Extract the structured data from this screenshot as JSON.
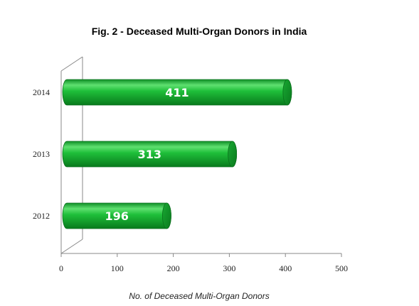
{
  "chart_data": {
    "type": "bar",
    "orientation": "horizontal",
    "title": "Fig. 2 - Deceased Multi-Organ Donors in India",
    "xlabel": "No. of Deceased Multi-Organ Donors",
    "ylabel": "",
    "categories": [
      "2012",
      "2013",
      "2014"
    ],
    "values": [
      196,
      313,
      411
    ],
    "xlim": [
      0,
      500
    ],
    "xticks": [
      0,
      100,
      200,
      300,
      400,
      500
    ],
    "bar_color": "#19b334",
    "data_label_color": "#ffffff",
    "grid": false,
    "legend": "none"
  }
}
